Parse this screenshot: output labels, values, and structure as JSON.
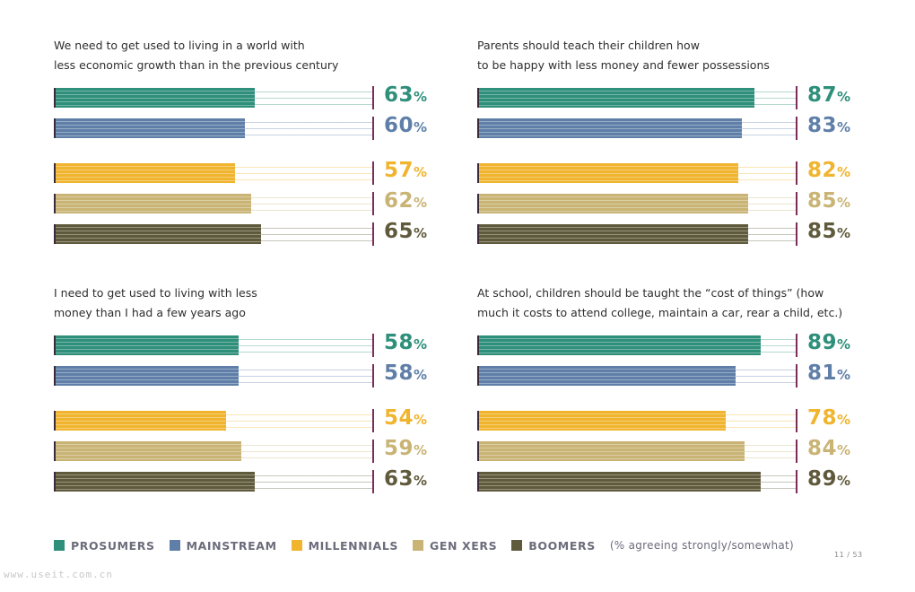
{
  "colors": {
    "prosumers": "#2e8f7a",
    "mainstream": "#5f7fa8",
    "millennials": "#f0b42e",
    "genxers": "#c9b475",
    "boomers": "#605a3c",
    "end_line": "#7a2d5a"
  },
  "legend": {
    "items": [
      {
        "label": "PROSUMERS",
        "color": "#2e8f7a"
      },
      {
        "label": "MAINSTREAM",
        "color": "#5f7fa8"
      },
      {
        "label": "MILLENNIALS",
        "color": "#f0b42e"
      },
      {
        "label": "GEN XERS",
        "color": "#c9b475"
      },
      {
        "label": "BOOMERS",
        "color": "#605a3c"
      }
    ],
    "note": "(% agreeing strongly/somewhat)"
  },
  "page_number": "11 / 53",
  "watermark": "www.useit.com.cn",
  "chart_data": [
    {
      "type": "bar",
      "title": "We need to get used to living in a world with\nless economic growth than in the previous century",
      "categories": [
        "PROSUMERS",
        "MAINSTREAM",
        "MILLENNIALS",
        "GEN XERS",
        "BOOMERS"
      ],
      "values": [
        63,
        60,
        57,
        62,
        65
      ],
      "labels": [
        "63",
        "60",
        "57",
        "62",
        "65"
      ],
      "ylim": [
        0,
        100
      ]
    },
    {
      "type": "bar",
      "title": "Parents should teach their children how\nto be happy with less money and fewer possessions",
      "categories": [
        "PROSUMERS",
        "MAINSTREAM",
        "MILLENNIALS",
        "GEN XERS",
        "BOOMERS"
      ],
      "values": [
        87,
        83,
        82,
        85,
        85
      ],
      "labels": [
        "87",
        "83",
        "82",
        "85",
        "85"
      ],
      "ylim": [
        0,
        100
      ]
    },
    {
      "type": "bar",
      "title": "I need to get used to living with less\nmoney than I had a few years ago",
      "categories": [
        "PROSUMERS",
        "MAINSTREAM",
        "MILLENNIALS",
        "GEN XERS",
        "BOOMERS"
      ],
      "values": [
        58,
        58,
        54,
        59,
        63
      ],
      "labels": [
        "58",
        "58",
        "54",
        "59",
        "63"
      ],
      "ylim": [
        0,
        100
      ]
    },
    {
      "type": "bar",
      "title": "At school, children should be taught the “cost of things” (how\nmuch it costs to attend college, maintain a car, rear a child, etc.)",
      "categories": [
        "PROSUMERS",
        "MAINSTREAM",
        "MILLENNIALS",
        "GEN XERS",
        "BOOMERS"
      ],
      "values": [
        89,
        81,
        78,
        84,
        89
      ],
      "labels": [
        "89",
        "81",
        "78",
        "84",
        "89"
      ],
      "ylim": [
        0,
        100
      ]
    }
  ]
}
